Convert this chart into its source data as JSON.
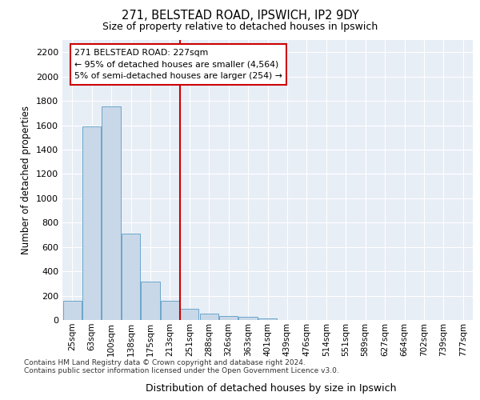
{
  "title1": "271, BELSTEAD ROAD, IPSWICH, IP2 9DY",
  "title2": "Size of property relative to detached houses in Ipswich",
  "xlabel": "Distribution of detached houses by size in Ipswich",
  "ylabel": "Number of detached properties",
  "categories": [
    "25sqm",
    "63sqm",
    "100sqm",
    "138sqm",
    "175sqm",
    "213sqm",
    "251sqm",
    "288sqm",
    "326sqm",
    "363sqm",
    "401sqm",
    "439sqm",
    "476sqm",
    "514sqm",
    "551sqm",
    "589sqm",
    "627sqm",
    "664sqm",
    "702sqm",
    "739sqm",
    "777sqm"
  ],
  "values": [
    155,
    1590,
    1755,
    710,
    315,
    160,
    90,
    55,
    35,
    25,
    15,
    0,
    0,
    0,
    0,
    0,
    0,
    0,
    0,
    0,
    0
  ],
  "bar_color": "#c8d8e8",
  "bar_edge_color": "#5a9cc5",
  "vline_x": 5.5,
  "vline_color": "#cc0000",
  "annotation_text": "271 BELSTEAD ROAD: 227sqm\n← 95% of detached houses are smaller (4,564)\n5% of semi-detached houses are larger (254) →",
  "annotation_box_color": "#cc0000",
  "ylim": [
    0,
    2300
  ],
  "yticks": [
    0,
    200,
    400,
    600,
    800,
    1000,
    1200,
    1400,
    1600,
    1800,
    2000,
    2200
  ],
  "background_color": "#e8eef6",
  "grid_color": "#ffffff",
  "footer1": "Contains HM Land Registry data © Crown copyright and database right 2024.",
  "footer2": "Contains public sector information licensed under the Open Government Licence v3.0."
}
